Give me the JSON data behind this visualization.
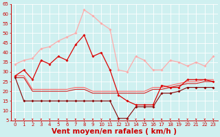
{
  "xlabel": "Vent moyen/en rafales ( km/h )",
  "background_color": "#cff0f0",
  "grid_color": "#ffffff",
  "xlim": [
    -0.5,
    23.5
  ],
  "ylim": [
    5,
    65
  ],
  "yticks": [
    5,
    10,
    15,
    20,
    25,
    30,
    35,
    40,
    45,
    50,
    55,
    60,
    65
  ],
  "xticks": [
    0,
    1,
    2,
    3,
    4,
    5,
    6,
    7,
    8,
    9,
    10,
    11,
    12,
    13,
    14,
    15,
    16,
    17,
    18,
    19,
    20,
    21,
    22,
    23
  ],
  "series": [
    {
      "x": [
        0,
        1,
        2,
        3,
        4,
        5,
        6,
        7,
        8,
        9,
        10,
        11,
        12,
        13,
        14,
        15,
        16,
        17,
        18,
        19,
        20,
        21,
        22,
        23
      ],
      "y": [
        34,
        36,
        37,
        42,
        43,
        46,
        48,
        50,
        62,
        59,
        55,
        52,
        31,
        30,
        38,
        36,
        31,
        31,
        36,
        35,
        33,
        35,
        33,
        38
      ],
      "color": "#ffaaaa",
      "linewidth": 0.9,
      "marker": "D",
      "markersize": 1.8,
      "zorder": 2
    },
    {
      "x": [
        0,
        1,
        2,
        3,
        4,
        5,
        6,
        7,
        8,
        9,
        10,
        11,
        12,
        13,
        14,
        15,
        16,
        17,
        18,
        19,
        20,
        21,
        22,
        23
      ],
      "y": [
        28,
        31,
        26,
        36,
        34,
        38,
        36,
        44,
        49,
        38,
        40,
        31,
        18,
        15,
        13,
        13,
        13,
        23,
        22,
        22,
        26,
        26,
        26,
        25
      ],
      "color": "#dd0000",
      "linewidth": 0.9,
      "marker": "D",
      "markersize": 1.8,
      "zorder": 4
    },
    {
      "x": [
        0,
        1,
        2,
        3,
        4,
        5,
        6,
        7,
        8,
        9,
        10,
        11,
        12,
        13,
        14,
        15,
        16,
        17,
        18,
        19,
        20,
        21,
        22,
        23
      ],
      "y": [
        28,
        28,
        21,
        21,
        21,
        21,
        21,
        22,
        22,
        20,
        20,
        20,
        20,
        20,
        20,
        20,
        22,
        22,
        23,
        24,
        25,
        25,
        26,
        26
      ],
      "color": "#ff6666",
      "linewidth": 0.8,
      "marker": null,
      "markersize": 0,
      "zorder": 3
    },
    {
      "x": [
        0,
        1,
        2,
        3,
        4,
        5,
        6,
        7,
        8,
        9,
        10,
        11,
        12,
        13,
        14,
        15,
        16,
        17,
        18,
        19,
        20,
        21,
        22,
        23
      ],
      "y": [
        27,
        27,
        20,
        20,
        20,
        20,
        20,
        21,
        21,
        19,
        19,
        19,
        19,
        19,
        19,
        19,
        21,
        21,
        22,
        23,
        24,
        24,
        25,
        25
      ],
      "color": "#cc2222",
      "linewidth": 0.8,
      "marker": null,
      "markersize": 0,
      "zorder": 3
    },
    {
      "x": [
        0,
        1,
        2,
        3,
        4,
        5,
        6,
        7,
        8,
        9,
        10,
        11,
        12,
        13,
        14,
        15,
        16,
        17,
        18,
        19,
        20,
        21,
        22,
        23
      ],
      "y": [
        27,
        15,
        15,
        15,
        15,
        15,
        15,
        15,
        15,
        15,
        15,
        15,
        6,
        6,
        12,
        12,
        12,
        19,
        19,
        20,
        22,
        22,
        22,
        22
      ],
      "color": "#880000",
      "linewidth": 0.8,
      "marker": "D",
      "markersize": 1.8,
      "zorder": 3
    }
  ],
  "tick_color": "#cc0000",
  "label_color": "#cc0000",
  "tick_fontsize": 5.0,
  "xlabel_fontsize": 7.5
}
